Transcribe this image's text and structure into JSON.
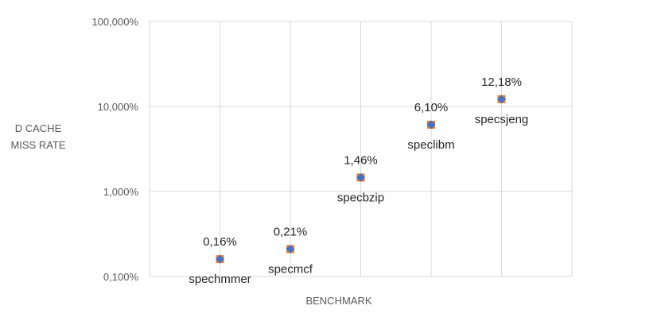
{
  "chart_data": {
    "type": "scatter",
    "xlabel": "BENCHMARK",
    "ylabel_lines": [
      "D CACHE",
      "MISS RATE"
    ],
    "y_scale": "log",
    "ylim": [
      0.1,
      100
    ],
    "y_ticks": [
      {
        "value": 100,
        "label": "100,000%"
      },
      {
        "value": 10,
        "label": "10,000%"
      },
      {
        "value": 1,
        "label": "1,000%"
      },
      {
        "value": 0.1,
        "label": "0,100%"
      }
    ],
    "x_categories_count": 6,
    "grid": true,
    "marker_colors": {
      "outer": "#ED7D31",
      "inner": "#4472C4"
    },
    "points": [
      {
        "x": 1,
        "y": 0.16,
        "value_label": "0,16%",
        "name": "spechmmer"
      },
      {
        "x": 2,
        "y": 0.21,
        "value_label": "0,21%",
        "name": "specmcf"
      },
      {
        "x": 3,
        "y": 1.46,
        "value_label": "1,46%",
        "name": "specbzip"
      },
      {
        "x": 4,
        "y": 6.1,
        "value_label": "6,10%",
        "name": "speclibm"
      },
      {
        "x": 5,
        "y": 12.18,
        "value_label": "12,18%",
        "name": "specsjeng"
      }
    ]
  }
}
